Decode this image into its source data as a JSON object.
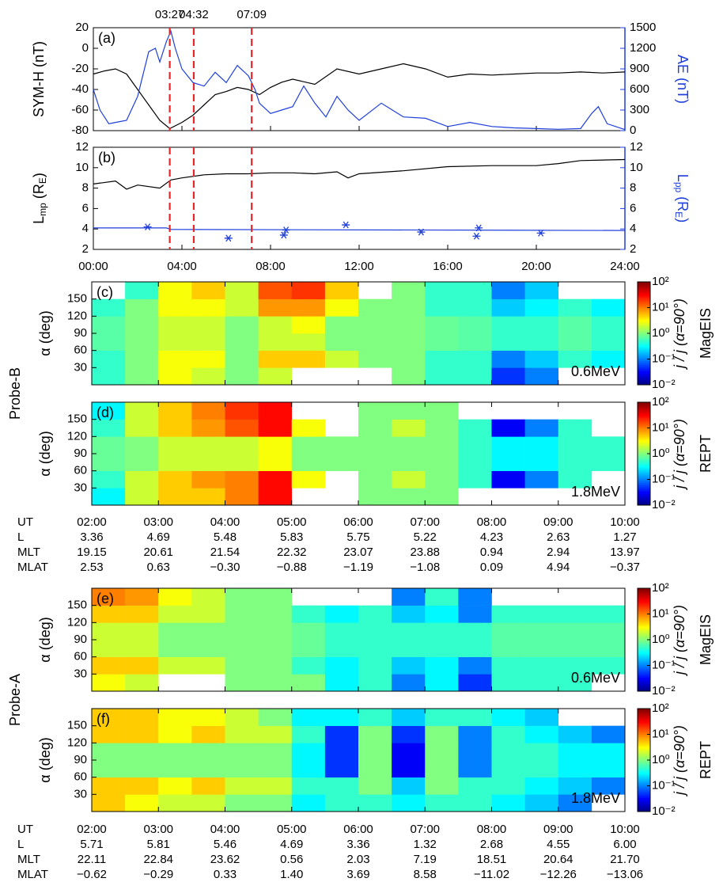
{
  "chart_data": [
    {
      "type": "line",
      "panel_label": "(a)",
      "ylabel": [
        "SYM-H (nT)"
      ],
      "y2label": [
        "AE (nT)"
      ],
      "xlim": [
        0,
        24
      ],
      "xticks": [
        0,
        4,
        8,
        12,
        16,
        20,
        24
      ],
      "ylim": [
        -80,
        20
      ],
      "yticks": [
        -80,
        -60,
        -40,
        -20,
        0,
        20
      ],
      "y2lim": [
        0,
        1500
      ],
      "y2ticks": [
        0,
        300,
        600,
        900,
        1200,
        1500
      ],
      "markers": [
        {
          "value": 3.45,
          "label": "03:27"
        },
        {
          "value": 4.533,
          "label": "04:32"
        },
        {
          "value": 7.15,
          "label": "07:09"
        }
      ],
      "marker_color": "#e8262a",
      "series": [
        {
          "color": "#000000",
          "x": [
            0,
            0.5,
            1,
            1.5,
            2,
            2.5,
            3,
            3.45,
            4,
            4.5,
            5,
            5.5,
            6,
            6.5,
            7,
            7.5,
            8,
            8.5,
            9,
            10,
            11,
            12,
            13,
            14,
            15,
            16,
            17,
            18,
            19,
            20,
            21,
            22,
            23,
            24
          ],
          "values": [
            -25,
            -22,
            -20,
            -25,
            -40,
            -55,
            -70,
            -78,
            -72,
            -65,
            -55,
            -45,
            -42,
            -38,
            -40,
            -45,
            -38,
            -33,
            -30,
            -35,
            -20,
            -25,
            -20,
            -15,
            -20,
            -28,
            -25,
            -26,
            -25,
            -24,
            -24,
            -23,
            -24,
            -23
          ]
        },
        {
          "color": "#1f3fdc",
          "axis": "y2",
          "x": [
            0,
            0.3,
            0.7,
            1,
            1.5,
            2,
            2.5,
            2.8,
            3,
            3.3,
            3.5,
            3.7,
            4,
            4.5,
            5,
            5.5,
            6,
            6.5,
            7,
            7.3,
            7.5,
            8,
            8.5,
            9,
            9.5,
            10,
            10.5,
            11,
            11.5,
            12,
            13,
            13.5,
            14,
            15,
            16,
            17,
            18,
            19,
            20,
            21,
            22,
            22.5,
            22.8,
            23.2,
            24
          ],
          "values": [
            600,
            300,
            100,
            120,
            150,
            500,
            1150,
            1200,
            1000,
            1300,
            1450,
            1200,
            900,
            700,
            650,
            850,
            700,
            950,
            800,
            600,
            400,
            250,
            300,
            350,
            650,
            400,
            200,
            500,
            300,
            150,
            400,
            300,
            200,
            180,
            60,
            120,
            60,
            40,
            30,
            20,
            30,
            250,
            350,
            100,
            15
          ]
        }
      ]
    },
    {
      "type": "line",
      "panel_label": "(b)",
      "ylabel": [
        "L",
        "mp",
        " (R",
        "E",
        ")"
      ],
      "y2label": [
        "L",
        "pp",
        " (R",
        "E",
        ")"
      ],
      "xlim": [
        0,
        24
      ],
      "xticks": [
        {
          "value": 0,
          "label": "00:00"
        },
        {
          "value": 4,
          "label": "04:00"
        },
        {
          "value": 8,
          "label": "08:00"
        },
        {
          "value": 12,
          "label": "12:00"
        },
        {
          "value": 16,
          "label": "16:00"
        },
        {
          "value": 20,
          "label": "20:00"
        },
        {
          "value": 24,
          "label": "24:00"
        }
      ],
      "ylim": [
        2,
        12
      ],
      "yticks": [
        2,
        4,
        6,
        8,
        10,
        12
      ],
      "y2lim": [
        2,
        12
      ],
      "y2ticks": [
        2,
        4,
        6,
        8,
        10,
        12
      ],
      "markers": [
        3.45,
        4.533,
        7.15
      ],
      "marker_color": "#e8262a",
      "series": [
        {
          "color": "#000000",
          "x": [
            0,
            1,
            1.5,
            2,
            3,
            3.5,
            4,
            5,
            6,
            7,
            8,
            9,
            10,
            11,
            11.5,
            12,
            14,
            16,
            18,
            20,
            21,
            22,
            24
          ],
          "values": [
            8.4,
            8.7,
            7.9,
            8.3,
            8.0,
            8.8,
            9.0,
            9.3,
            9.4,
            9.4,
            9.5,
            9.5,
            9.4,
            9.6,
            9.0,
            9.4,
            9.7,
            10.1,
            10.2,
            10.2,
            10.4,
            10.7,
            10.8
          ]
        },
        {
          "color": "#1f3fdc",
          "axis": "y2",
          "x": [
            0,
            3.3,
            3.5,
            24
          ],
          "values": [
            4.1,
            4.1,
            3.95,
            3.85
          ]
        }
      ],
      "points": {
        "color": "#1f3fdc",
        "axis": "y2",
        "x": [
          2.45,
          6.1,
          8.6,
          8.7,
          11.4,
          14.8,
          17.3,
          17.4,
          20.2
        ],
        "y": [
          4.2,
          3.1,
          3.4,
          3.9,
          4.4,
          3.7,
          3.3,
          4.1,
          3.6
        ]
      }
    },
    {
      "type": "heatmap",
      "panel_label": "(c)",
      "ylabel": "α (deg)",
      "energy": "0.6MeV",
      "instrument": "MagEIS",
      "colorbar_label": "j / j (α=90°)",
      "xlim": [
        2,
        10
      ],
      "xticks": [
        2,
        3,
        4,
        5,
        6,
        7,
        8,
        9,
        10
      ],
      "ylim": [
        0,
        180
      ],
      "yticks": [
        30,
        60,
        90,
        120,
        150
      ],
      "x_bins": [
        2,
        2.5,
        3,
        3.5,
        4,
        4.5,
        5,
        5.5,
        6,
        6.5,
        7,
        7.5,
        8,
        8.5,
        9,
        9.5,
        10
      ],
      "y_bins": [
        0,
        30,
        60,
        90,
        120,
        150,
        180
      ],
      "zlim": [
        0.01,
        100
      ],
      "zlog": true,
      "zticks": [
        {
          "value": 0.01,
          "label": "10⁻²"
        },
        {
          "value": 0.1,
          "label": "10⁻¹"
        },
        {
          "value": 1,
          "label": "10⁰"
        },
        {
          "value": 10,
          "label": "10¹"
        },
        {
          "value": 100,
          "label": "10²"
        }
      ],
      "values": [
        [
          0.5,
          1,
          3,
          2,
          1,
          2,
          null,
          null,
          null,
          1,
          0.5,
          0.5,
          0.05,
          0.1,
          null,
          null
        ],
        [
          0.5,
          1,
          3,
          3,
          1,
          5,
          5,
          2,
          1,
          1,
          0.5,
          0.5,
          0.1,
          0.2,
          0.5,
          0.3
        ],
        [
          0.7,
          1,
          2,
          2,
          1,
          2,
          2,
          1,
          1,
          1,
          0.8,
          0.7,
          0.5,
          0.5,
          0.7,
          0.5
        ],
        [
          0.7,
          1,
          2,
          2,
          1,
          2,
          3,
          1,
          1,
          1,
          0.8,
          0.7,
          0.5,
          0.5,
          0.7,
          0.5
        ],
        [
          0.5,
          1,
          3,
          3,
          2,
          8,
          8,
          3,
          1,
          1,
          0.5,
          0.5,
          0.2,
          0.3,
          0.5,
          0.3
        ],
        [
          null,
          0.5,
          3,
          5,
          2,
          15,
          20,
          5,
          null,
          1,
          0.5,
          0.5,
          0.1,
          0.2,
          null,
          null
        ]
      ]
    },
    {
      "type": "heatmap",
      "panel_label": "(d)",
      "ylabel": "α (deg)",
      "energy": "1.8MeV",
      "instrument": "REPT",
      "colorbar_label": "j / j (α=90°)",
      "xlim": [
        2,
        10
      ],
      "xticks": [
        2,
        3,
        4,
        5,
        6,
        7,
        8,
        9,
        10
      ],
      "ylim": [
        0,
        180
      ],
      "yticks": [
        30,
        60,
        90,
        120,
        150
      ],
      "x_bins": [
        2,
        2.5,
        3,
        3.5,
        4,
        4.5,
        5,
        5.5,
        6,
        6.5,
        7,
        7.5,
        8,
        8.5,
        9,
        9.5,
        10
      ],
      "y_bins": [
        0,
        30,
        60,
        90,
        120,
        150,
        180
      ],
      "zlim": [
        0.01,
        100
      ],
      "zlog": true,
      "zticks": [
        {
          "value": 0.01,
          "label": "10⁻²"
        },
        {
          "value": 0.1,
          "label": "10⁻¹"
        },
        {
          "value": 1,
          "label": "10⁰"
        },
        {
          "value": 10,
          "label": "10¹"
        },
        {
          "value": 100,
          "label": "10²"
        }
      ],
      "values": [
        [
          0.3,
          2,
          5,
          5,
          10,
          30,
          null,
          null,
          1,
          1,
          1,
          null,
          null,
          null,
          null,
          null
        ],
        [
          0.5,
          2,
          5,
          8,
          10,
          30,
          3,
          null,
          1,
          2,
          1,
          0.5,
          0.03,
          0.1,
          0.5,
          null
        ],
        [
          0.8,
          1,
          2,
          2,
          2,
          3,
          1,
          1,
          1,
          1,
          1,
          0.5,
          0.3,
          0.3,
          0.5,
          0.5
        ],
        [
          0.8,
          1,
          2,
          2,
          2,
          3,
          1,
          1,
          1,
          1,
          1,
          0.5,
          0.3,
          0.3,
          0.5,
          0.5
        ],
        [
          0.5,
          2,
          5,
          8,
          15,
          30,
          3,
          null,
          1,
          2,
          1,
          0.5,
          0.03,
          0.1,
          0.5,
          null
        ],
        [
          0.3,
          2,
          5,
          10,
          20,
          30,
          null,
          null,
          1,
          1,
          1,
          null,
          null,
          null,
          null,
          null
        ]
      ]
    },
    {
      "type": "heatmap",
      "panel_label": "(e)",
      "ylabel": "α (deg)",
      "energy": "0.6MeV",
      "instrument": "MagEIS",
      "colorbar_label": "j / j (α=90°)",
      "xlim": [
        2,
        10
      ],
      "xticks": [
        2,
        3,
        4,
        5,
        6,
        7,
        8,
        9,
        10
      ],
      "ylim": [
        0,
        180
      ],
      "yticks": [
        30,
        60,
        90,
        120,
        150
      ],
      "x_bins": [
        2,
        2.5,
        3,
        3.5,
        4,
        4.5,
        5,
        5.5,
        6,
        6.5,
        7,
        7.5,
        8,
        8.5,
        9,
        9.5,
        10
      ],
      "y_bins": [
        0,
        30,
        60,
        90,
        120,
        150,
        180
      ],
      "zlim": [
        0.01,
        100
      ],
      "zlog": true,
      "zticks": [
        {
          "value": 0.01,
          "label": "10⁻²"
        },
        {
          "value": 0.1,
          "label": "10⁻¹"
        },
        {
          "value": 1,
          "label": "10⁰"
        },
        {
          "value": 10,
          "label": "10¹"
        },
        {
          "value": 100,
          "label": "10²"
        }
      ],
      "values": [
        [
          3,
          2,
          null,
          null,
          1,
          1,
          1,
          0.3,
          0.5,
          0.1,
          0.3,
          0.05,
          0.5,
          0.5,
          0.5,
          null
        ],
        [
          5,
          5,
          2,
          2,
          1,
          1,
          0.5,
          0.3,
          0.5,
          0.2,
          0.3,
          0.1,
          0.5,
          0.5,
          0.5,
          0.5
        ],
        [
          2,
          2,
          1,
          1,
          1,
          1,
          0.8,
          0.5,
          0.5,
          0.5,
          0.5,
          0.5,
          0.7,
          0.7,
          0.7,
          0.7
        ],
        [
          2,
          2,
          1,
          1,
          1,
          1,
          0.8,
          0.5,
          0.5,
          0.5,
          0.5,
          0.5,
          0.7,
          0.7,
          0.7,
          0.7
        ],
        [
          5,
          5,
          2,
          2,
          1,
          1,
          0.5,
          0.3,
          0.5,
          0.2,
          0.3,
          0.1,
          0.5,
          0.5,
          0.5,
          0.5
        ],
        [
          10,
          8,
          3,
          2,
          1,
          1,
          null,
          null,
          null,
          0.1,
          0.5,
          0.1,
          null,
          null,
          null,
          null
        ]
      ]
    },
    {
      "type": "heatmap",
      "panel_label": "(f)",
      "ylabel": "α (deg)",
      "energy": "1.8MeV",
      "instrument": "REPT",
      "colorbar_label": "j / j (α=90°)",
      "xlim": [
        2,
        10
      ],
      "xticks": [
        2,
        3,
        4,
        5,
        6,
        7,
        8,
        9,
        10
      ],
      "ylim": [
        0,
        180
      ],
      "yticks": [
        30,
        60,
        90,
        120,
        150
      ],
      "x_bins": [
        2,
        2.5,
        3,
        3.5,
        4,
        4.5,
        5,
        5.5,
        6,
        6.5,
        7,
        7.5,
        8,
        8.5,
        9,
        9.5,
        10
      ],
      "y_bins": [
        0,
        30,
        60,
        90,
        120,
        150,
        180
      ],
      "zlim": [
        0.01,
        100
      ],
      "zlog": true,
      "zticks": [
        {
          "value": 0.01,
          "label": "10⁻²"
        },
        {
          "value": 0.1,
          "label": "10⁻¹"
        },
        {
          "value": 1,
          "label": "10⁰"
        },
        {
          "value": 10,
          "label": "10¹"
        },
        {
          "value": 100,
          "label": "10²"
        }
      ],
      "values": [
        [
          5,
          3,
          2,
          2,
          1,
          1,
          0.3,
          0.5,
          0.5,
          0.3,
          0.5,
          0.5,
          0.3,
          0.2,
          0.1,
          null
        ],
        [
          5,
          5,
          3,
          5,
          2,
          2,
          0.5,
          0.5,
          1,
          0.2,
          1,
          0.5,
          0.5,
          0.3,
          0.2,
          0.1
        ],
        [
          1,
          1,
          1,
          1,
          1,
          1,
          0.3,
          0.05,
          1,
          0.03,
          1,
          0.1,
          0.5,
          0.5,
          0.3,
          0.3
        ],
        [
          1,
          1,
          1,
          1,
          1,
          1,
          0.3,
          0.05,
          1,
          0.03,
          1,
          0.1,
          0.5,
          0.5,
          0.3,
          0.3
        ],
        [
          5,
          5,
          3,
          5,
          2,
          2,
          0.5,
          0.05,
          1,
          0.05,
          1,
          0.1,
          0.5,
          0.3,
          0.2,
          0.1
        ],
        [
          5,
          5,
          3,
          3,
          2,
          1,
          0.3,
          0.3,
          0.5,
          0.2,
          0.5,
          0.5,
          0.3,
          0.2,
          null,
          null
        ]
      ]
    }
  ],
  "tables": [
    {
      "rows": [
        [
          "UT",
          "02:00",
          "03:00",
          "04:00",
          "05:00",
          "06:00",
          "07:00",
          "08:00",
          "09:00",
          "10:00"
        ],
        [
          "L",
          "3.36",
          "4.69",
          "5.48",
          "5.83",
          "5.75",
          "5.22",
          "4.23",
          "2.63",
          "1.27"
        ],
        [
          "MLT",
          "19.15",
          "20.61",
          "21.54",
          "22.32",
          "23.07",
          "23.88",
          "0.94",
          "2.94",
          "13.97"
        ],
        [
          "MLAT",
          "2.53",
          "0.63",
          "−0.30",
          "−0.88",
          "−1.19",
          "−1.08",
          "0.09",
          "4.94",
          "−0.37"
        ]
      ]
    },
    {
      "rows": [
        [
          "UT",
          "02:00",
          "03:00",
          "04:00",
          "05:00",
          "06:00",
          "07:00",
          "08:00",
          "09:00",
          "10:00"
        ],
        [
          "L",
          "5.71",
          "5.81",
          "5.46",
          "4.69",
          "3.36",
          "1.32",
          "2.68",
          "4.55",
          "6.00"
        ],
        [
          "MLT",
          "22.11",
          "22.84",
          "23.62",
          "0.56",
          "2.03",
          "7.19",
          "18.51",
          "20.64",
          "21.70"
        ],
        [
          "MLAT",
          "−0.62",
          "−0.29",
          "0.33",
          "1.40",
          "3.69",
          "8.58",
          "−11.02",
          "−12.26",
          "−13.06"
        ]
      ]
    }
  ],
  "probes": [
    "Probe-B",
    "Probe-A"
  ]
}
